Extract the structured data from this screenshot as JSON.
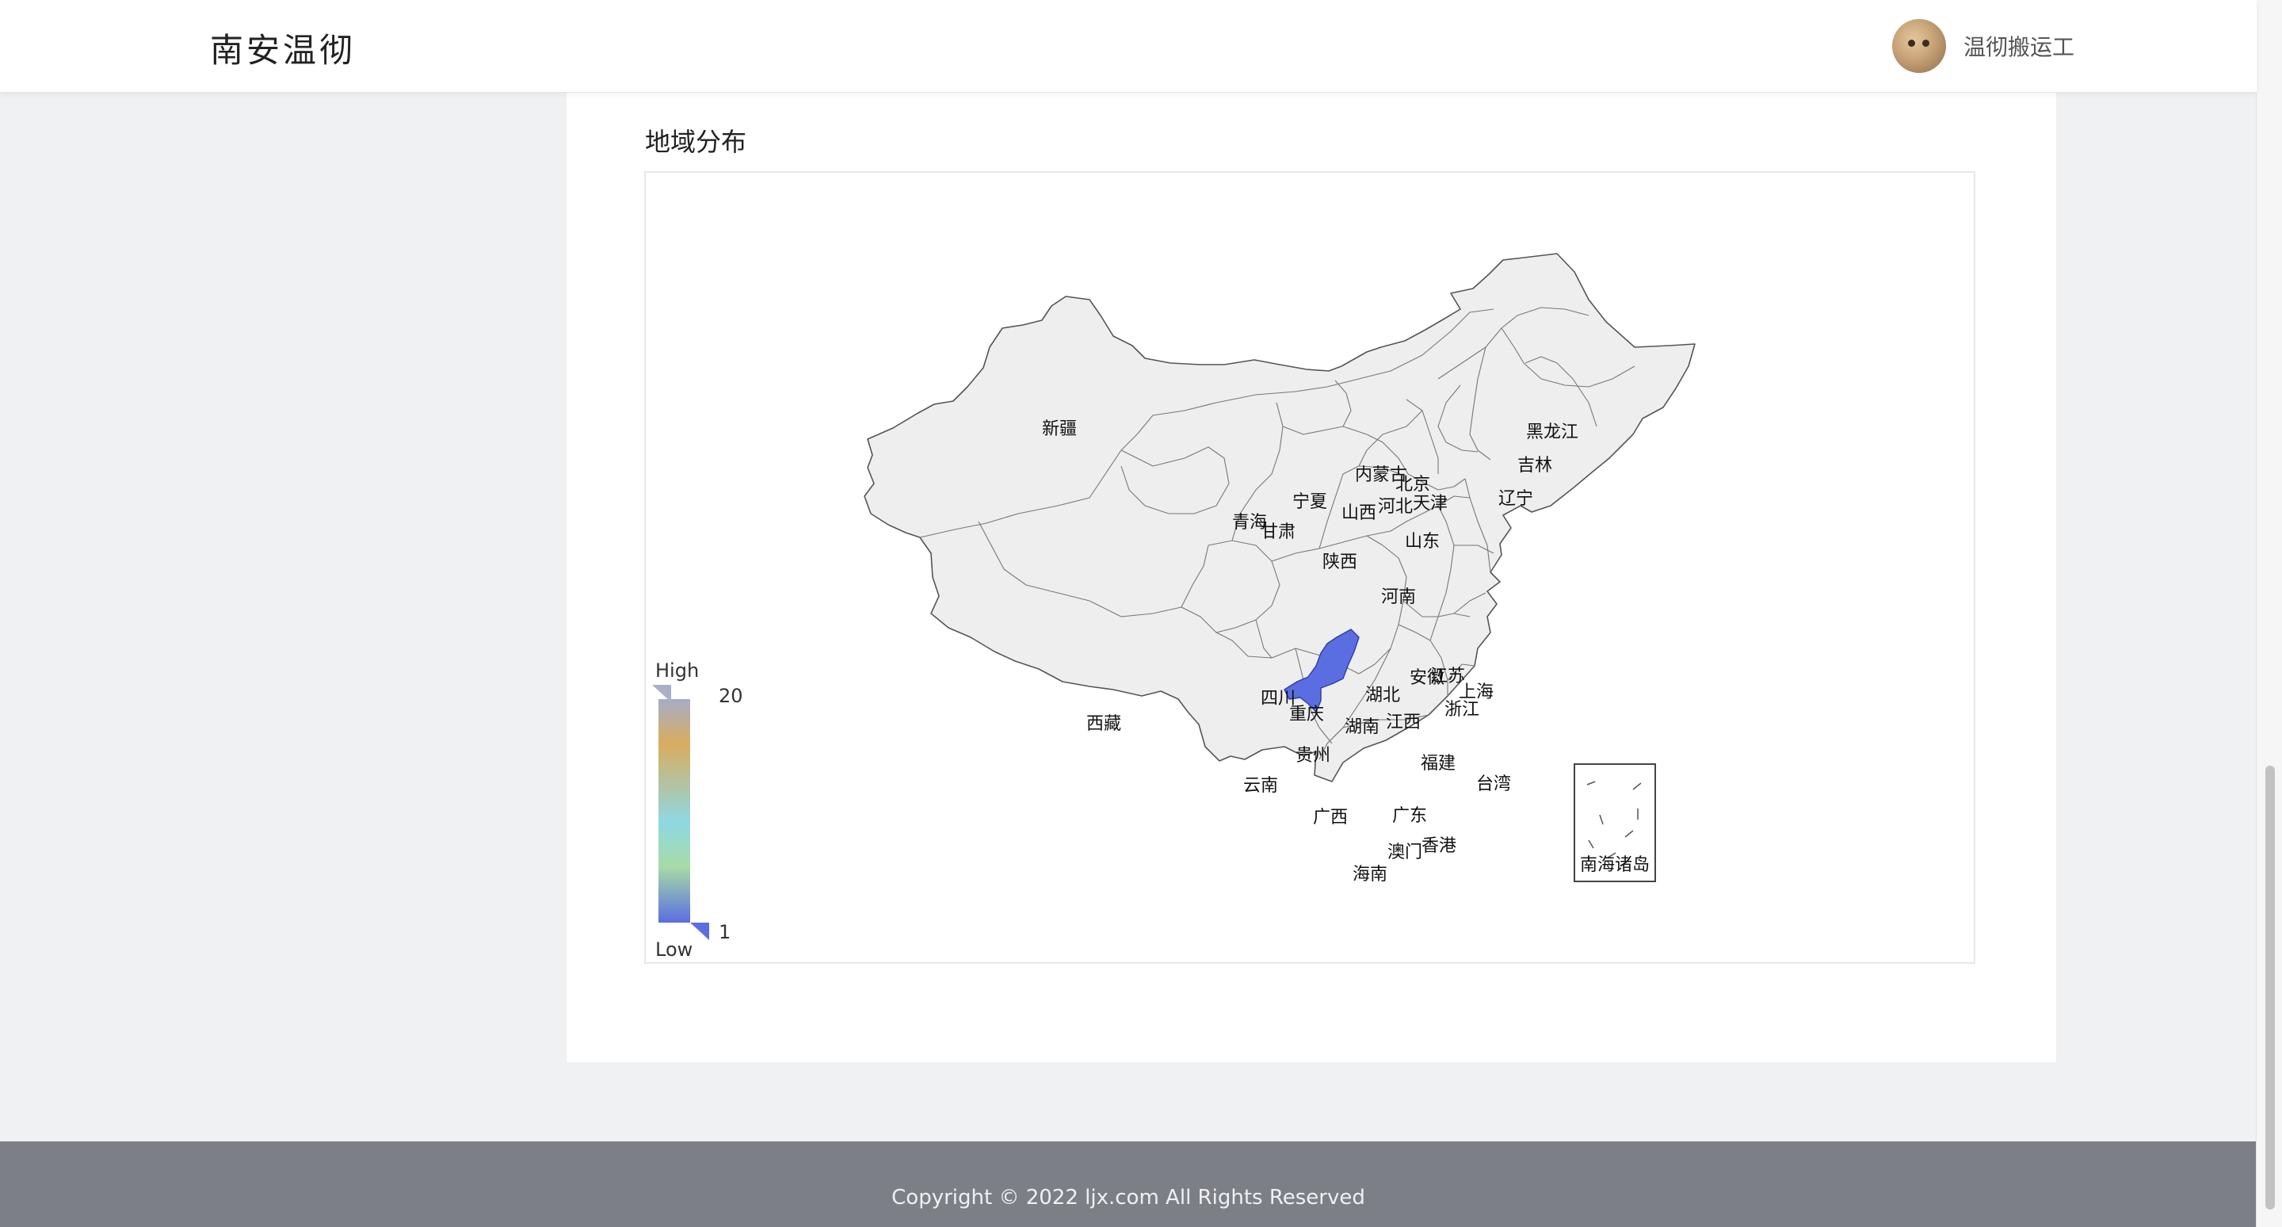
{
  "header": {
    "logo": "南安温彻",
    "username": "温彻搬运工"
  },
  "section": {
    "title": "地域分布"
  },
  "visual_map": {
    "high_label": "High",
    "low_label": "Low",
    "max": "20",
    "min": "1"
  },
  "map": {
    "highlighted_province": "重庆",
    "highlight_color": "#5b6ee1",
    "base_color": "#eeeeee",
    "province_labels": [
      "新疆",
      "西藏",
      "内蒙古",
      "青海",
      "甘肃",
      "宁夏",
      "四川",
      "云南",
      "贵州",
      "广西",
      "陕西",
      "山西",
      "河北",
      "北京",
      "天津",
      "山东",
      "河南",
      "湖北",
      "重庆",
      "湖南",
      "江西",
      "安徽",
      "江苏",
      "上海",
      "浙江",
      "福建",
      "台湾",
      "广东",
      "香港",
      "澳门",
      "海南",
      "辽宁",
      "吉林",
      "黑龙江"
    ],
    "inset_label": "南海诸岛"
  },
  "footer": {
    "copyright": "Copyright © 2022 ljx.com All Rights Reserved"
  }
}
